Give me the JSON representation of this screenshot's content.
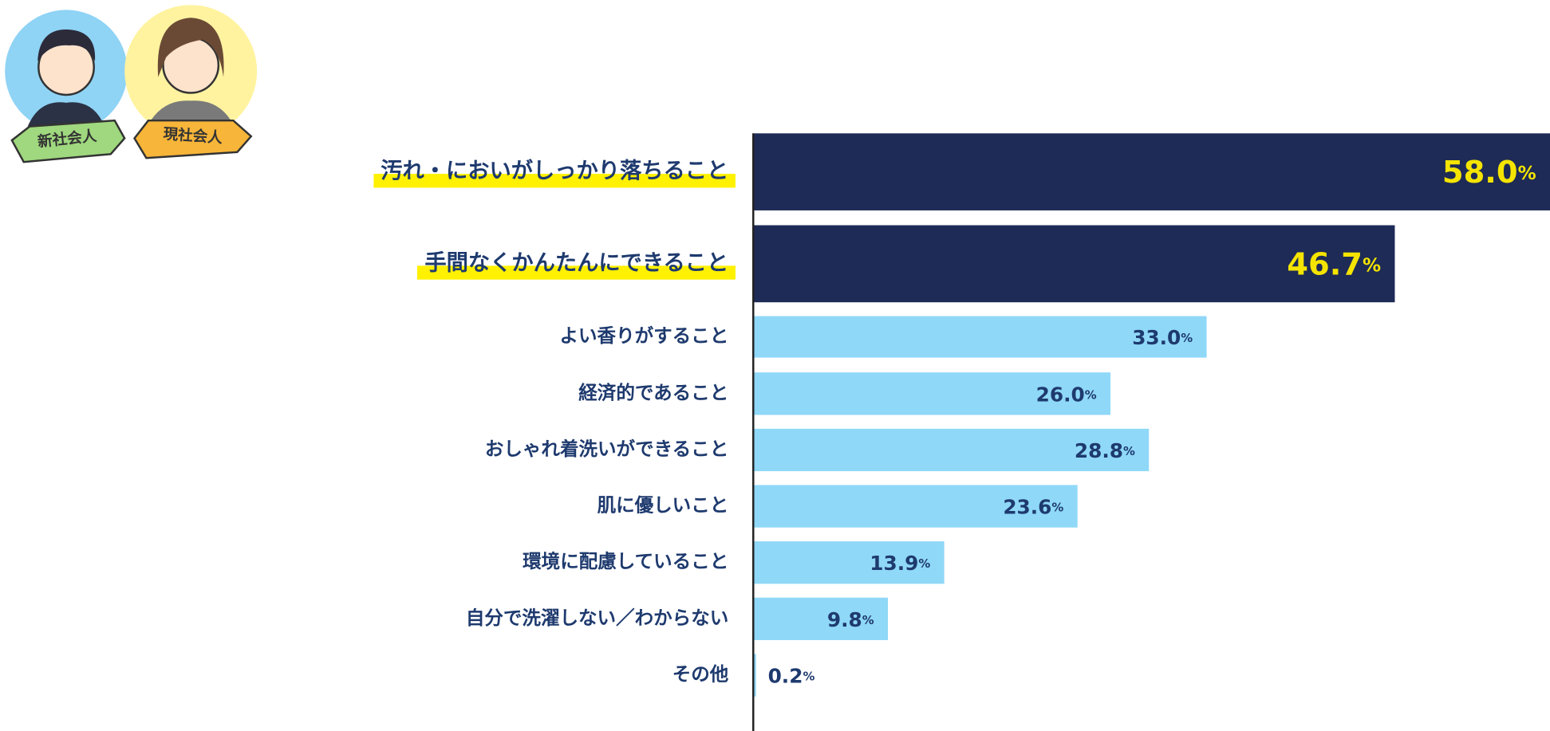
{
  "chart_data": {
    "type": "bar",
    "orientation": "horizontal",
    "badges": [
      "新社会人",
      "現社会人"
    ],
    "categories": [
      "汚れ・においがしっかり落ちること",
      "手間なくかんたんにできること",
      "よい香りがすること",
      "経済的であること",
      "おしゃれ着洗いができること",
      "肌に優しいこと",
      "環境に配慮していること",
      "自分で洗濯しない／わからない",
      "その他"
    ],
    "values": [
      58.0,
      46.7,
      33.0,
      26.0,
      28.8,
      23.6,
      13.9,
      9.8,
      0.2
    ],
    "value_labels": [
      "58.0%",
      "46.7%",
      "33.0%",
      "26.0%",
      "28.8%",
      "23.6%",
      "13.9%",
      "9.8%",
      "0.2%"
    ],
    "colors": [
      "#1e2b56",
      "#1e2b56",
      "#8fd8f8",
      "#8fd8f8",
      "#8fd8f8",
      "#8fd8f8",
      "#8fd8f8",
      "#8fd8f8",
      "#8fd8f8"
    ],
    "highlighted": [
      0,
      1
    ],
    "highlight_color": "#fff100",
    "label_color": "#1e3a6e",
    "highlight_label_color": "#f5e400"
  }
}
